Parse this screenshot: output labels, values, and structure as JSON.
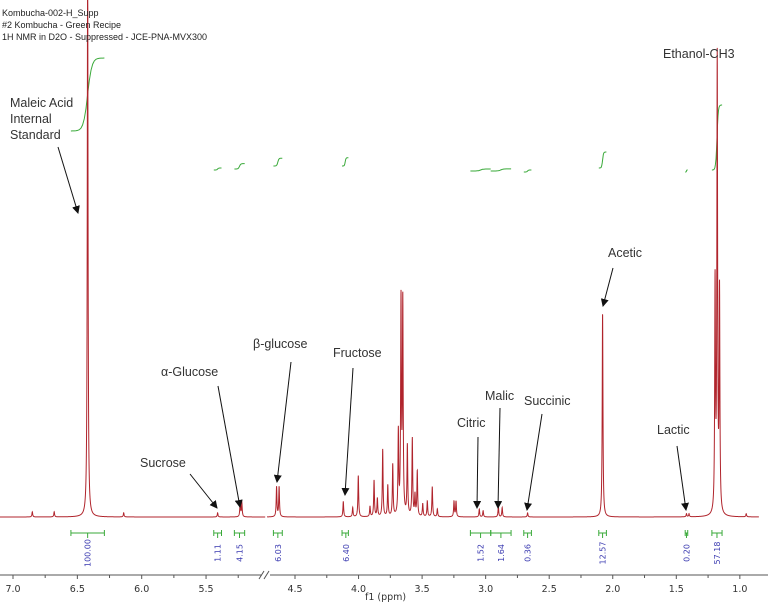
{
  "header": {
    "line1": "Kombucha-002-H_Supp",
    "line2": "#2 Kombucha - Green Recipe",
    "line3": "1H NMR in D2O - Suppressed - JCE-PNA-MVX300"
  },
  "colors": {
    "spectrum": "#b0242c",
    "integral": "#3aaa3a",
    "integral_label": "#3a3ab0",
    "axis": "#555555"
  },
  "chart_data": {
    "type": "line",
    "xlabel": "f1 (ppm)",
    "xlim": [
      7.2,
      0.85
    ],
    "x_axis_break": [
      5.04,
      4.72
    ],
    "x_reversed": true,
    "ticks": [
      "7.0",
      "6.5",
      "6.0",
      "5.5",
      "4.5",
      "4.0",
      "3.5",
      "3.0",
      "2.5",
      "2.0",
      "1.5",
      "1.0"
    ],
    "grid": false,
    "peaks_ppm_relative_height": [
      [
        6.85,
        0.01
      ],
      [
        6.68,
        0.01
      ],
      [
        6.42,
        1.1
      ],
      [
        6.14,
        0.008
      ],
      [
        5.41,
        0.008
      ],
      [
        5.235,
        0.027
      ],
      [
        5.222,
        0.027
      ],
      [
        4.645,
        0.058
      ],
      [
        4.625,
        0.058
      ],
      [
        4.12,
        0.03
      ],
      [
        4.046,
        0.018
      ],
      [
        4.002,
        0.08
      ],
      [
        3.91,
        0.02
      ],
      [
        3.878,
        0.07
      ],
      [
        3.852,
        0.035
      ],
      [
        3.81,
        0.13
      ],
      [
        3.77,
        0.06
      ],
      [
        3.731,
        0.1
      ],
      [
        3.687,
        0.16
      ],
      [
        3.666,
        0.41
      ],
      [
        3.652,
        0.41
      ],
      [
        3.616,
        0.135
      ],
      [
        3.577,
        0.15
      ],
      [
        3.556,
        0.04
      ],
      [
        3.538,
        0.087
      ],
      [
        3.495,
        0.025
      ],
      [
        3.459,
        0.03
      ],
      [
        3.42,
        0.058
      ],
      [
        3.38,
        0.015
      ],
      [
        3.249,
        0.03
      ],
      [
        3.233,
        0.03
      ],
      [
        3.05,
        0.015
      ],
      [
        3.02,
        0.012
      ],
      [
        2.9,
        0.02
      ],
      [
        2.87,
        0.018
      ],
      [
        2.67,
        0.008
      ],
      [
        2.08,
        0.395
      ],
      [
        1.42,
        0.006
      ],
      [
        1.4,
        0.006
      ],
      [
        1.195,
        0.44
      ],
      [
        1.178,
        0.874
      ],
      [
        1.16,
        0.425
      ],
      [
        0.95,
        0.006
      ]
    ],
    "annotations": [
      {
        "text": [
          "Maleic Acid",
          "Internal",
          "Standard"
        ]
      },
      {
        "text": [
          "Sucrose"
        ]
      },
      {
        "text": [
          "α-Glucose"
        ]
      },
      {
        "text": [
          "β-glucose"
        ]
      },
      {
        "text": [
          "Fructose"
        ]
      },
      {
        "text": [
          "Citric"
        ]
      },
      {
        "text": [
          "Malic"
        ]
      },
      {
        "text": [
          "Succinic"
        ]
      },
      {
        "text": [
          "Acetic"
        ]
      },
      {
        "text": [
          "Lactic"
        ]
      },
      {
        "text": [
          "Ethanol-CH3"
        ]
      }
    ],
    "integrals": [
      {
        "from": 6.55,
        "to": 6.29,
        "center": 6.42,
        "value": "100.00"
      },
      {
        "from": 5.44,
        "to": 5.38,
        "center": 5.41,
        "value": "1.11"
      },
      {
        "from": 5.28,
        "to": 5.2,
        "center": 5.24,
        "value": "4.15"
      },
      {
        "from": 4.67,
        "to": 4.6,
        "center": 4.635,
        "value": "6.03"
      },
      {
        "from": 4.13,
        "to": 4.08,
        "center": 4.1,
        "value": "6.40"
      },
      {
        "from": 3.12,
        "to": 2.96,
        "center": 3.04,
        "value": "1.52"
      },
      {
        "from": 2.96,
        "to": 2.8,
        "center": 2.88,
        "value": "1.64"
      },
      {
        "from": 2.7,
        "to": 2.64,
        "center": 2.67,
        "value": "0.36"
      },
      {
        "from": 2.11,
        "to": 2.05,
        "center": 2.08,
        "value": "12.57"
      },
      {
        "from": 1.43,
        "to": 1.41,
        "center": 1.42,
        "value": "0.20"
      },
      {
        "from": 1.22,
        "to": 1.14,
        "center": 1.18,
        "value": "57.18"
      }
    ]
  }
}
